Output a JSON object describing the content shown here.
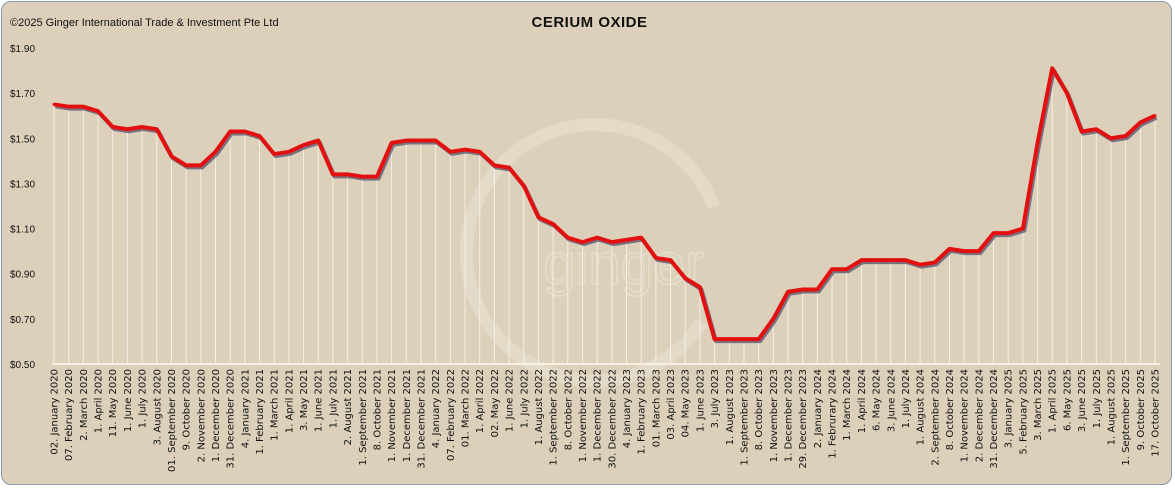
{
  "copyright": "©2025 Ginger International Trade & Investment Pte Ltd",
  "watermark": "ginger",
  "colors": {
    "background": "#dcd0bb",
    "line": "#e31010",
    "shadow": "#4a4a66",
    "droplines": "#f5efe4"
  },
  "chart_data": {
    "type": "line",
    "title": "CERIUM OXIDE",
    "xlabel": "",
    "ylabel": "",
    "ylim": [
      0.5,
      1.9
    ],
    "yticks": [
      "$0.50",
      "$0.70",
      "$0.90",
      "$1.10",
      "$1.30",
      "$1.50",
      "$1.70",
      "$1.90"
    ],
    "ytick_values": [
      0.5,
      0.7,
      0.9,
      1.1,
      1.3,
      1.5,
      1.7,
      1.9
    ],
    "grid": false,
    "categories": [
      "02. January 2020",
      "07. February 2020",
      "2. March 2020",
      "1. April 2020",
      "11. May 2020",
      "1. June 2020",
      "1. July 2020",
      "3. August 2020",
      "01. September 2020",
      "9. October 2020",
      "2. November 2020",
      "1. December 2020",
      "31. December 2020",
      "4. January 2021",
      "1. February 2021",
      "1. March 2021",
      "1. April 2021",
      "3. May 2021",
      "1. June 2021",
      "1. July 2021",
      "2. August 2021",
      "1. September 2021",
      "8. October 2021",
      "1. November 2021",
      "1. December 2021",
      "31. December 2021",
      "4. January 2022",
      "07. February 2022",
      "01. March 2022",
      "1. April 2022",
      "02. May 2022",
      "1. June 2022",
      "1. July 2022",
      "1. August 2022",
      "1. September 2022",
      "8. October 2022",
      "1. November 2022",
      "1. December 2022",
      "30. December 2022",
      "4. January 2023",
      "1. February 2023",
      "01. March 2023",
      "03. April 2023",
      "04. May 2023",
      "1. June 2023",
      "3. July 2023",
      "1. August 2023",
      "1. September 2023",
      "8. October 2023",
      "1. November 2023",
      "1. December 2023",
      "29. December 2023",
      "2. January 2024",
      "1. Februrary 2024",
      "1. March 2024",
      "1. April 2024",
      "6. May 2024",
      "3. June 2024",
      "1. July 2024",
      "1. August 2024",
      "2. September 2024",
      "8. October 2024",
      "1. November 2024",
      "2. December 2024",
      "31. December 2024",
      "3. January 2025",
      "5. February 2025",
      "3. March 2025",
      "1. April 2025",
      "6. May 2025",
      "3. June 2025",
      "1. July 2025",
      "1. August 2025",
      "1. September 2025",
      "9. October 2025",
      "17. October 2025"
    ],
    "series": [
      {
        "name": "Cerium Oxide",
        "values": [
          1.65,
          1.64,
          1.64,
          1.62,
          1.55,
          1.54,
          1.55,
          1.54,
          1.42,
          1.38,
          1.38,
          1.44,
          1.53,
          1.53,
          1.51,
          1.43,
          1.44,
          1.47,
          1.49,
          1.34,
          1.34,
          1.33,
          1.33,
          1.48,
          1.49,
          1.49,
          1.49,
          1.44,
          1.45,
          1.44,
          1.38,
          1.37,
          1.29,
          1.15,
          1.12,
          1.06,
          1.04,
          1.06,
          1.04,
          1.05,
          1.06,
          0.97,
          0.96,
          0.88,
          0.84,
          0.61,
          0.61,
          0.61,
          0.61,
          0.7,
          0.82,
          0.83,
          0.83,
          0.92,
          0.92,
          0.96,
          0.96,
          0.96,
          0.96,
          0.94,
          0.95,
          1.01,
          1.0,
          1.0,
          1.08,
          1.08,
          1.1,
          1.48,
          1.81,
          1.7,
          1.53,
          1.54,
          1.5,
          1.51,
          1.57,
          1.6
        ]
      }
    ]
  }
}
